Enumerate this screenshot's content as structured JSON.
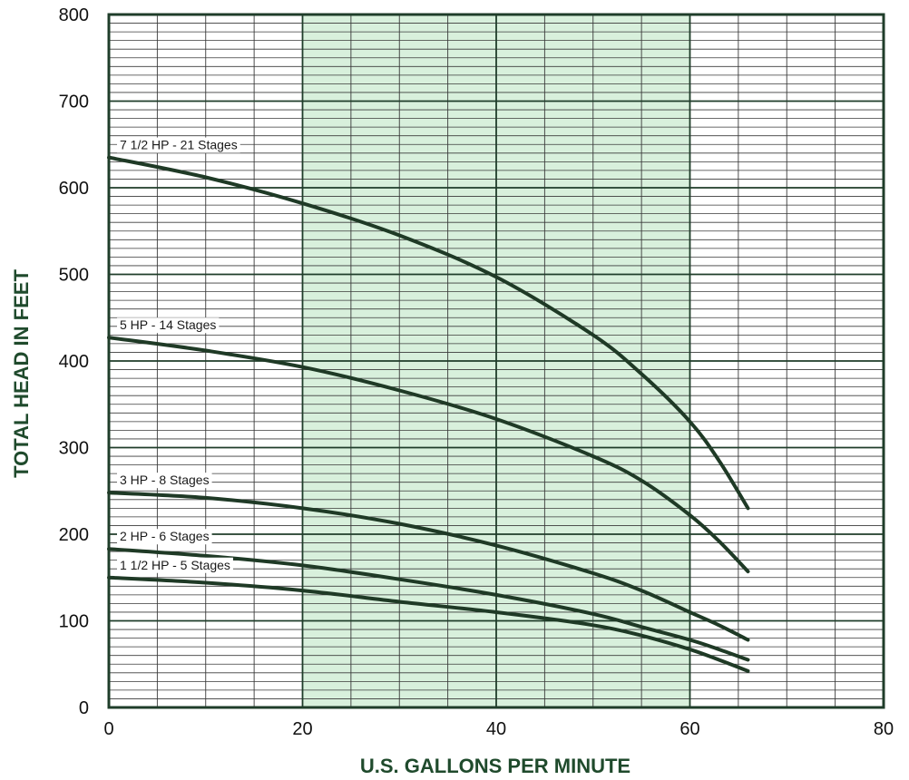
{
  "chart_data": {
    "type": "line",
    "xlabel": "U.S. GALLONS PER MINUTE",
    "ylabel": "TOTAL HEAD IN FEET",
    "xlim": [
      0,
      80
    ],
    "ylim": [
      0,
      800
    ],
    "x_ticks": [
      0,
      20,
      40,
      60,
      80
    ],
    "y_ticks": [
      0,
      100,
      200,
      300,
      400,
      500,
      600,
      700,
      800
    ],
    "x_minor_step": 5,
    "y_minor_step": 10,
    "grid": true,
    "highlight_band": {
      "x_from": 20,
      "x_to": 60
    },
    "series": [
      {
        "name": "7 1/2 HP - 21 Stages",
        "x": [
          0,
          10,
          20,
          30,
          40,
          50,
          55,
          60,
          63,
          66
        ],
        "y": [
          635,
          612,
          582,
          545,
          497,
          430,
          385,
          330,
          285,
          230
        ]
      },
      {
        "name": "5 HP - 14 Stages",
        "x": [
          0,
          10,
          20,
          30,
          40,
          50,
          55,
          60,
          63,
          66
        ],
        "y": [
          427,
          412,
          393,
          366,
          333,
          290,
          262,
          222,
          192,
          157
        ]
      },
      {
        "name": "3 HP - 8 Stages",
        "x": [
          0,
          10,
          20,
          30,
          40,
          50,
          55,
          60,
          63,
          66
        ],
        "y": [
          248,
          242,
          230,
          212,
          187,
          155,
          135,
          110,
          95,
          78
        ]
      },
      {
        "name": "2 HP - 6 Stages",
        "x": [
          0,
          10,
          20,
          30,
          40,
          50,
          55,
          60,
          63,
          66
        ],
        "y": [
          183,
          175,
          164,
          148,
          130,
          108,
          93,
          78,
          67,
          55
        ]
      },
      {
        "name": "1 1/2 HP - 5 Stages",
        "x": [
          0,
          10,
          20,
          30,
          40,
          50,
          55,
          60,
          63,
          66
        ],
        "y": [
          150,
          144,
          135,
          122,
          110,
          95,
          83,
          67,
          55,
          42
        ]
      }
    ]
  },
  "colors": {
    "plot_background": "#ffffff",
    "band_fill": "#d8f0dc",
    "minor_grid": "#3a3a3a",
    "major_grid": "#1f3d2a",
    "frame": "#1f3d2a",
    "curve": "#1f3a26",
    "axis_title": "#1f4a2c"
  }
}
